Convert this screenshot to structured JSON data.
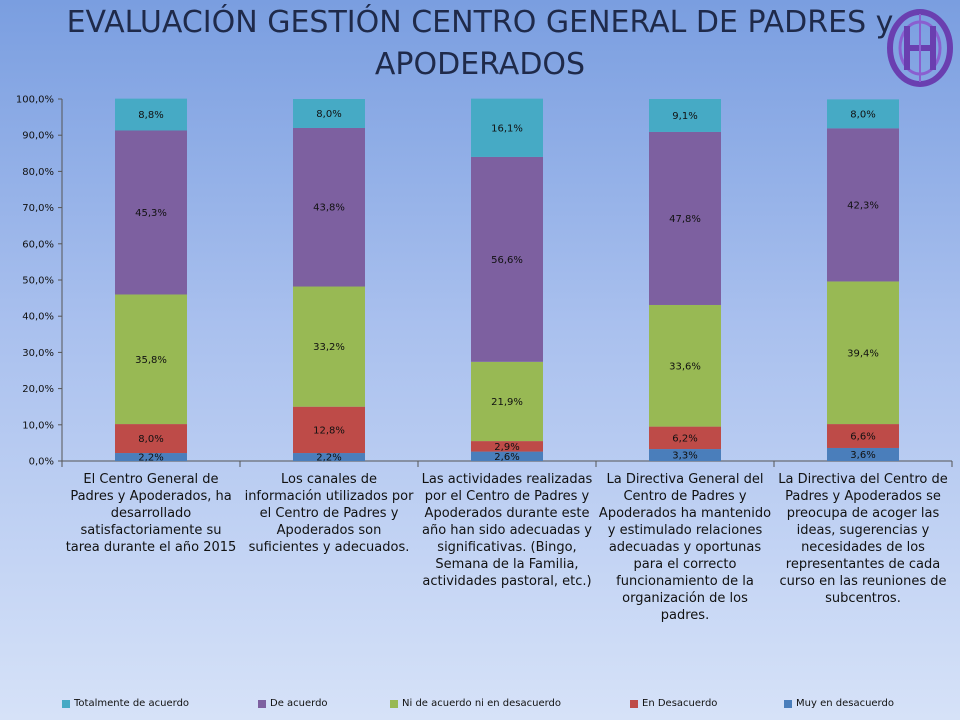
{
  "title": "EVALUACIÓN GESTIÓN CENTRO GENERAL DE PADRES y APODERADOS",
  "chart_data": {
    "type": "bar",
    "stacked": true,
    "ylim": [
      0,
      100
    ],
    "yticks": [
      "0,0%",
      "10,0%",
      "20,0%",
      "30,0%",
      "40,0%",
      "50,0%",
      "60,0%",
      "70,0%",
      "80,0%",
      "90,0%",
      "100,0%"
    ],
    "categories": [
      "El Centro General de Padres y Apoderados, ha desarrollado satisfactoriamente su tarea durante el año 2015",
      "Los canales de información utilizados por el Centro de Padres y Apoderados son suficientes y adecuados.",
      "Las actividades realizadas por el Centro de Padres y Apoderados durante este año han sido adecuadas y significativas. (Bingo, Semana de la Familia, actividades pastoral, etc.)",
      "La Directiva General del Centro de Padres y Apoderados ha mantenido y estimulado relaciones adecuadas y oportunas para el correcto funcionamiento de la organización de los padres.",
      "La Directiva del Centro de Padres y Apoderados se preocupa de acoger las ideas, sugerencias y necesidades de los representantes de cada curso en las reuniones de subcentros."
    ],
    "series": [
      {
        "name": "Muy en desacuerdo",
        "color": "#4a7ebb",
        "values": [
          2.2,
          2.2,
          2.6,
          3.3,
          3.6
        ],
        "labels": [
          "2,2%",
          "2,2%",
          "2,6%",
          "3,3%",
          "3,6%"
        ]
      },
      {
        "name": "En Desacuerdo",
        "color": "#be4b48",
        "values": [
          8.0,
          12.8,
          2.9,
          6.2,
          6.6
        ],
        "labels": [
          "8,0%",
          "12,8%",
          "2,9%",
          "6,2%",
          "6,6%"
        ]
      },
      {
        "name": "Ni de acuerdo ni en desacuerdo",
        "color": "#98b954",
        "values": [
          35.8,
          33.2,
          21.9,
          33.6,
          39.4
        ],
        "labels": [
          "35,8%",
          "33,2%",
          "21,9%",
          "33,6%",
          "39,4%"
        ]
      },
      {
        "name": "De acuerdo",
        "color": "#7d60a0",
        "values": [
          45.3,
          43.8,
          56.6,
          47.8,
          42.3
        ],
        "labels": [
          "45,3%",
          "43,8%",
          "56,6%",
          "47,8%",
          "42,3%"
        ]
      },
      {
        "name": "Totalmente de acuerdo",
        "color": "#46aac5",
        "values": [
          8.8,
          8.0,
          16.1,
          9.1,
          8.0
        ],
        "labels": [
          "8,8%",
          "8,0%",
          "16,1%",
          "9,1%",
          "8,0%"
        ]
      }
    ],
    "legend_order": [
      "Totalmente de acuerdo",
      "De acuerdo",
      "Ni de acuerdo ni en desacuerdo",
      "En Desacuerdo",
      "Muy en desacuerdo"
    ],
    "legend_position": "bottom",
    "grid": false
  },
  "logo": {
    "name": "school-crest-logo",
    "color": "#6a3fb0"
  }
}
